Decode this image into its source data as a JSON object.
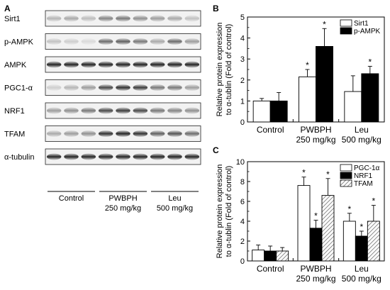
{
  "panels": {
    "a": "A",
    "b": "B",
    "c": "C"
  },
  "blot": {
    "proteins": [
      "Sirt1",
      "p-AMPK",
      "AMPK",
      "PGC1-α",
      "NRF1",
      "TFAM",
      "α-tubulin"
    ],
    "groups": [
      {
        "line1": "Control",
        "line2": ""
      },
      {
        "line1": "PWBPH",
        "line2": "250 mg/kg"
      },
      {
        "line1": "Leu",
        "line2": "500 mg/kg"
      }
    ],
    "lanes_per_group": 3,
    "band_intensity": [
      [
        0.25,
        0.3,
        0.22,
        0.45,
        0.5,
        0.4,
        0.35,
        0.3,
        0.2
      ],
      [
        0.2,
        0.15,
        0.1,
        0.55,
        0.6,
        0.5,
        0.3,
        0.55,
        0.35
      ],
      [
        0.85,
        0.85,
        0.85,
        0.85,
        0.85,
        0.85,
        0.85,
        0.85,
        0.85
      ],
      [
        0.15,
        0.25,
        0.35,
        0.7,
        0.8,
        0.75,
        0.5,
        0.5,
        0.35
      ],
      [
        0.35,
        0.4,
        0.5,
        0.7,
        0.75,
        0.7,
        0.5,
        0.45,
        0.4
      ],
      [
        0.3,
        0.35,
        0.4,
        0.8,
        0.85,
        0.8,
        0.6,
        0.65,
        0.55
      ],
      [
        0.85,
        0.85,
        0.85,
        0.85,
        0.85,
        0.85,
        0.85,
        0.85,
        0.85
      ]
    ]
  },
  "chart_data": [
    {
      "panel": "B",
      "type": "bar",
      "ylabel_line1": "Relative protein expression",
      "ylabel_line2": "to α-tublin (Fold of control)",
      "categories": [
        {
          "line1": "Control",
          "line2": ""
        },
        {
          "line1": "PWBPH",
          "line2": "250 mg/kg"
        },
        {
          "line1": "Leu",
          "line2": "500 mg/kg"
        }
      ],
      "ylim": [
        0,
        5
      ],
      "yticks": [
        "0",
        "1",
        "2",
        "3",
        "4",
        "5"
      ],
      "legend_position": "top-right",
      "series": [
        {
          "name": "Sirt1",
          "values": [
            1.0,
            2.15,
            1.45
          ],
          "errors": [
            0.12,
            0.35,
            0.75
          ],
          "stars": [
            "",
            "*",
            ""
          ],
          "color": "#ffffff",
          "pattern": "none"
        },
        {
          "name": "p-AMPK",
          "values": [
            1.0,
            3.6,
            2.3
          ],
          "errors": [
            0.4,
            0.85,
            0.35
          ],
          "stars": [
            "",
            "*",
            "*"
          ],
          "color": "#000000",
          "pattern": "none"
        }
      ]
    },
    {
      "panel": "C",
      "type": "bar",
      "ylabel_line1": "Relative protein expression",
      "ylabel_line2": "to α-tublin (Fold of control)",
      "categories": [
        {
          "line1": "Control",
          "line2": ""
        },
        {
          "line1": "PWBPH",
          "line2": "250 mg/kg"
        },
        {
          "line1": "Leu",
          "line2": "500 mg/kg"
        }
      ],
      "ylim": [
        0,
        10
      ],
      "yticks": [
        "0",
        "2",
        "4",
        "6",
        "8",
        "10"
      ],
      "legend_position": "top-right",
      "series": [
        {
          "name": "PGC-1α",
          "values": [
            1.1,
            7.6,
            4.0
          ],
          "errors": [
            0.5,
            0.85,
            0.8
          ],
          "stars": [
            "",
            "*",
            "*"
          ],
          "color": "#ffffff",
          "pattern": "none"
        },
        {
          "name": "NRF1",
          "values": [
            1.0,
            3.3,
            2.5
          ],
          "errors": [
            0.5,
            0.8,
            0.5
          ],
          "stars": [
            "",
            "*",
            "*"
          ],
          "color": "#000000",
          "pattern": "none"
        },
        {
          "name": "TFAM",
          "values": [
            1.0,
            6.6,
            4.0
          ],
          "errors": [
            0.35,
            1.7,
            1.6
          ],
          "stars": [
            "",
            "*",
            "*"
          ],
          "color": "#c8c8c8",
          "pattern": "hatch"
        }
      ]
    }
  ]
}
